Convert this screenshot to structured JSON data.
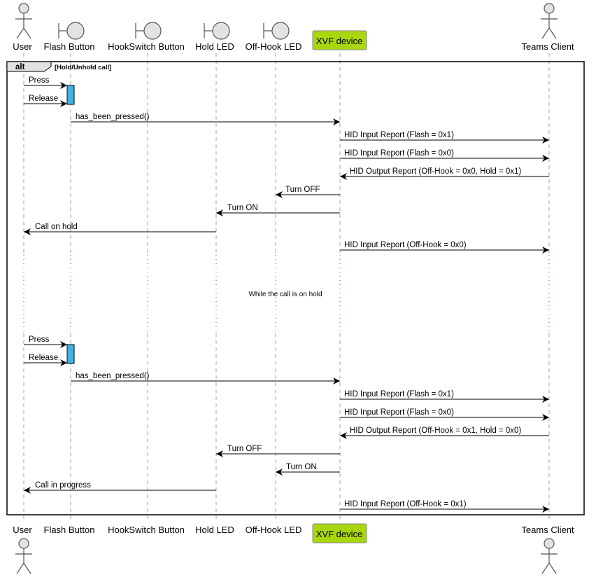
{
  "participants": [
    {
      "id": "user",
      "label": "User",
      "kind": "actor"
    },
    {
      "id": "flash",
      "label": "Flash Button",
      "kind": "boundary"
    },
    {
      "id": "hook",
      "label": "HookSwitch Button",
      "kind": "boundary"
    },
    {
      "id": "hold",
      "label": "Hold LED",
      "kind": "boundary"
    },
    {
      "id": "offhook",
      "label": "Off-Hook LED",
      "kind": "boundary"
    },
    {
      "id": "xvf",
      "label": "XVF device",
      "kind": "box"
    },
    {
      "id": "teams",
      "label": "Teams Client",
      "kind": "actor"
    }
  ],
  "fragment": {
    "tag": "alt",
    "guard": "[Hold/Unhold call]"
  },
  "messages": [
    {
      "from": "user",
      "to": "flash",
      "text": "Press"
    },
    {
      "from": "user",
      "to": "flash",
      "text": "Release"
    },
    {
      "from": "flash",
      "to": "xvf",
      "text": "has_been_pressed()"
    },
    {
      "from": "xvf",
      "to": "teams",
      "text": "HID Input Report (Flash = 0x1)"
    },
    {
      "from": "xvf",
      "to": "teams",
      "text": "HID Input Report (Flash = 0x0)"
    },
    {
      "from": "teams",
      "to": "xvf",
      "text": "HID Output Report (Off-Hook = 0x0, Hold = 0x1)"
    },
    {
      "from": "xvf",
      "to": "offhook",
      "text": "Turn OFF"
    },
    {
      "from": "xvf",
      "to": "hold",
      "text": "Turn ON"
    },
    {
      "from": "hold",
      "to": "user",
      "text": "Call on hold"
    },
    {
      "from": "xvf",
      "to": "teams",
      "text": "HID Input Report (Off-Hook = 0x0)"
    },
    {
      "from": "user",
      "to": "flash",
      "text": "Press"
    },
    {
      "from": "user",
      "to": "flash",
      "text": "Release"
    },
    {
      "from": "flash",
      "to": "xvf",
      "text": "has_been_pressed()"
    },
    {
      "from": "xvf",
      "to": "teams",
      "text": "HID Input Report (Flash = 0x1)"
    },
    {
      "from": "xvf",
      "to": "teams",
      "text": "HID Input Report (Flash = 0x0)"
    },
    {
      "from": "teams",
      "to": "xvf",
      "text": "HID Output Report (Off-Hook = 0x1, Hold = 0x0)"
    },
    {
      "from": "xvf",
      "to": "hold",
      "text": "Turn OFF"
    },
    {
      "from": "xvf",
      "to": "offhook",
      "text": "Turn ON"
    },
    {
      "from": "hold",
      "to": "user",
      "text": "Call in progress"
    },
    {
      "from": "xvf",
      "to": "teams",
      "text": "HID Input Report (Off-Hook = 0x1)"
    }
  ],
  "delay": {
    "text": "While the call is on hold"
  },
  "colors": {
    "activation": "#3CB4E8",
    "xvf_box": "#A8D70F",
    "delay_dots": "#C0392B",
    "participant_fill": "#E2E2E2",
    "lifeline": "#A0A0A0"
  }
}
